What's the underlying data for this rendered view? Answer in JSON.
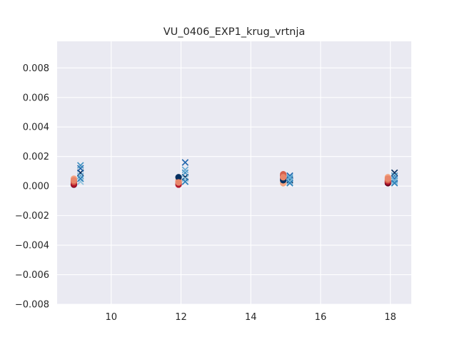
{
  "chart_data": {
    "type": "scatter",
    "title": "VU_0406_EXP1_krug_vrtnja",
    "xlabel": "",
    "ylabel": "",
    "xlim": [
      8.45,
      18.6
    ],
    "ylim": [
      -0.008,
      0.0098
    ],
    "x_ticks": [
      10,
      12,
      14,
      16,
      18
    ],
    "x_tick_labels": [
      "10",
      "12",
      "14",
      "16",
      "18"
    ],
    "y_ticks": [
      -0.008,
      -0.006,
      -0.004,
      -0.002,
      0.0,
      0.002,
      0.004,
      0.006,
      0.008
    ],
    "y_tick_labels": [
      "−0.008",
      "−0.006",
      "−0.004",
      "−0.002",
      "0.000",
      "0.002",
      "0.004",
      "0.006",
      "0.008"
    ],
    "grid": true,
    "background": "#eaeaf2",
    "grid_color": "#ffffff",
    "series": [
      {
        "marker": "circle",
        "color": "#67001f",
        "x": [
          8.93,
          11.93,
          14.93,
          17.93
        ],
        "y": [
          0.0001,
          0.0002,
          0.0005,
          0.0002
        ]
      },
      {
        "marker": "circle",
        "color": "#b2182b",
        "x": [
          8.93,
          11.93,
          14.93,
          17.93
        ],
        "y": [
          0.00015,
          0.0001,
          0.0007,
          0.0003
        ]
      },
      {
        "marker": "circle",
        "color": "#d6604d",
        "x": [
          8.93,
          11.93,
          14.93,
          17.93
        ],
        "y": [
          0.0003,
          0.0003,
          0.0008,
          0.0004
        ]
      },
      {
        "marker": "circle",
        "color": "#f4a582",
        "x": [
          8.93,
          11.93,
          14.93,
          17.93
        ],
        "y": [
          0.0005,
          0.0004,
          0.0002,
          0.0006
        ]
      },
      {
        "marker": "circle",
        "color": "#053061",
        "x": [
          11.93,
          14.93
        ],
        "y": [
          0.0006,
          0.0004
        ]
      },
      {
        "marker": "circle",
        "color": "#e8866a",
        "x": [
          8.93,
          11.93,
          14.93,
          17.93
        ],
        "y": [
          0.0004,
          0.00025,
          0.0006,
          0.0005
        ]
      },
      {
        "marker": "x",
        "color": "#053061",
        "x": [
          9.12,
          12.12,
          15.12,
          18.12
        ],
        "y": [
          0.0009,
          0.0006,
          0.0004,
          0.0009
        ]
      },
      {
        "marker": "x",
        "color": "#2166ac",
        "x": [
          9.12,
          12.12,
          15.12,
          18.12
        ],
        "y": [
          0.0012,
          0.0016,
          0.0007,
          0.0005
        ]
      },
      {
        "marker": "x",
        "color": "#4393c3",
        "x": [
          9.12,
          12.12,
          15.12,
          18.12
        ],
        "y": [
          0.0014,
          0.0009,
          0.0005,
          0.0007
        ]
      },
      {
        "marker": "x",
        "color": "#92c5de",
        "x": [
          9.12,
          12.12,
          15.12,
          18.12
        ],
        "y": [
          0.0003,
          0.0005,
          0.0003,
          0.0003
        ]
      },
      {
        "marker": "x",
        "color": "#6aaed6",
        "x": [
          9.12,
          12.12,
          15.12,
          18.12
        ],
        "y": [
          0.0007,
          0.0011,
          0.0006,
          0.0004
        ]
      },
      {
        "marker": "x",
        "color": "#2c7fb8",
        "x": [
          9.12,
          12.12,
          15.12,
          18.12
        ],
        "y": [
          0.0005,
          0.0003,
          0.0002,
          0.0002
        ]
      }
    ]
  }
}
